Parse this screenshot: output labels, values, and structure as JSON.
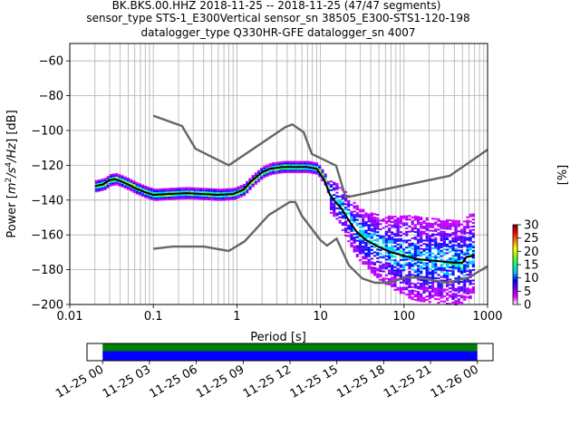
{
  "chart_data": [
    {
      "type": "line",
      "title_lines": [
        "BK.BKS.00.HHZ   2018-11-25 -- 2018-11-25  (47/47 segments)",
        "sensor_type STS-1_E300Vertical sensor_sn 38505_E300-STS1-120-198",
        "datalogger_type Q330HR-GFE datalogger_sn 4007"
      ],
      "xlabel": "Period [s]",
      "ylabel_parts": [
        "Power [",
        "m",
        "2",
        "/s",
        "4",
        "/Hz",
        "] [dB]"
      ],
      "xscale": "log",
      "xlim": [
        0.01,
        1000
      ],
      "ylim": [
        -200,
        -50
      ],
      "xticks": [
        {
          "value": 0.01,
          "label": "0.01"
        },
        {
          "value": 0.1,
          "label": "0.1"
        },
        {
          "value": 1,
          "label": "1"
        },
        {
          "value": 10,
          "label": "10"
        },
        {
          "value": 100,
          "label": "100"
        },
        {
          "value": 1000,
          "label": "1000"
        }
      ],
      "yticks": [
        {
          "value": -60,
          "label": "−60"
        },
        {
          "value": -80,
          "label": "−80"
        },
        {
          "value": -100,
          "label": "−100"
        },
        {
          "value": -120,
          "label": "−120"
        },
        {
          "value": -140,
          "label": "−140"
        },
        {
          "value": -160,
          "label": "−160"
        },
        {
          "value": -180,
          "label": "−180"
        },
        {
          "value": -200,
          "label": "−200"
        }
      ],
      "grid": true,
      "series": [
        {
          "style": "noise-model-high",
          "color": "#666666",
          "points": [
            [
              0.1,
              -91.5
            ],
            [
              0.22,
              -97.4
            ],
            [
              0.32,
              -110.5
            ],
            [
              0.8,
              -120
            ],
            [
              3.8,
              -98
            ],
            [
              4.6,
              -96.5
            ],
            [
              6.3,
              -101
            ],
            [
              7.9,
              -113.5
            ],
            [
              15.4,
              -120.2
            ],
            [
              20,
              -138.5
            ],
            [
              354.8,
              -126
            ],
            [
              1000,
              -111
            ]
          ]
        },
        {
          "style": "noise-model-low",
          "color": "#666666",
          "points": [
            [
              0.1,
              -168
            ],
            [
              0.17,
              -166.7
            ],
            [
              0.4,
              -166.7
            ],
            [
              0.8,
              -169.2
            ],
            [
              1.24,
              -163.7
            ],
            [
              2.4,
              -148.6
            ],
            [
              4.3,
              -141.1
            ],
            [
              5,
              -141.1
            ],
            [
              6,
              -149
            ],
            [
              10,
              -163
            ],
            [
              12,
              -166.2
            ],
            [
              15.6,
              -162.1
            ],
            [
              21.9,
              -177.5
            ],
            [
              31.6,
              -185
            ],
            [
              45,
              -187.5
            ],
            [
              70,
              -187.5
            ],
            [
              101,
              -184.4
            ],
            [
              154,
              -184.7
            ],
            [
              328,
              -187.5
            ],
            [
              600,
              -184.4
            ],
            [
              1000,
              -178
            ]
          ]
        },
        {
          "style": "mode",
          "color": "#000000",
          "points": [
            [
              0.02,
              -132
            ],
            [
              0.025,
              -131
            ],
            [
              0.03,
              -128.5
            ],
            [
              0.035,
              -128
            ],
            [
              0.04,
              -129
            ],
            [
              0.05,
              -131
            ],
            [
              0.06,
              -133
            ],
            [
              0.08,
              -135.5
            ],
            [
              0.1,
              -137
            ],
            [
              0.15,
              -136.5
            ],
            [
              0.25,
              -136
            ],
            [
              0.4,
              -136.5
            ],
            [
              0.6,
              -137
            ],
            [
              0.9,
              -136.5
            ],
            [
              1.2,
              -134
            ],
            [
              1.5,
              -129
            ],
            [
              2,
              -124
            ],
            [
              2.5,
              -122
            ],
            [
              3.5,
              -121
            ],
            [
              5,
              -121
            ],
            [
              7,
              -121
            ],
            [
              9,
              -122
            ],
            [
              11,
              -128
            ],
            [
              13,
              -137
            ],
            [
              15,
              -141
            ],
            [
              18,
              -145
            ],
            [
              22,
              -152
            ],
            [
              27,
              -158
            ],
            [
              35,
              -163
            ],
            [
              50,
              -167
            ],
            [
              70,
              -170
            ],
            [
              100,
              -172
            ],
            [
              150,
              -174
            ],
            [
              250,
              -175
            ],
            [
              400,
              -176
            ],
            [
              500,
              -176
            ],
            [
              560,
              -172.5
            ],
            [
              700,
              -172
            ]
          ]
        }
      ],
      "colorbar": {
        "label": "[%]",
        "range": [
          0,
          30
        ],
        "ticks": [
          {
            "value": 0,
            "label": "0"
          },
          {
            "value": 5,
            "label": "5"
          },
          {
            "value": 10,
            "label": "10"
          },
          {
            "value": 15,
            "label": "15"
          },
          {
            "value": 20,
            "label": "20"
          },
          {
            "value": 25,
            "label": "25"
          },
          {
            "value": 30,
            "label": "30"
          }
        ],
        "colors": [
          "#ffffff",
          "#e000ff",
          "#7000ff",
          "#0000ff",
          "#00c0ff",
          "#00ff80",
          "#80ff00",
          "#ffff00",
          "#ff8000",
          "#ff0000",
          "#800000"
        ]
      }
    },
    {
      "type": "timeline",
      "xlim_hours": [
        -1,
        25
      ],
      "data_hours": [
        0,
        24
      ],
      "bar_colors": [
        "#008000",
        "#0000ff"
      ],
      "ticks": [
        {
          "hour": 0,
          "label": "11-25 00"
        },
        {
          "hour": 3,
          "label": "11-25 03"
        },
        {
          "hour": 6,
          "label": "11-25 06"
        },
        {
          "hour": 9,
          "label": "11-25 09"
        },
        {
          "hour": 12,
          "label": "11-25 12"
        },
        {
          "hour": 15,
          "label": "11-25 15"
        },
        {
          "hour": 18,
          "label": "11-25 18"
        },
        {
          "hour": 21,
          "label": "11-25 21"
        },
        {
          "hour": 24,
          "label": "11-26 00"
        }
      ]
    }
  ]
}
